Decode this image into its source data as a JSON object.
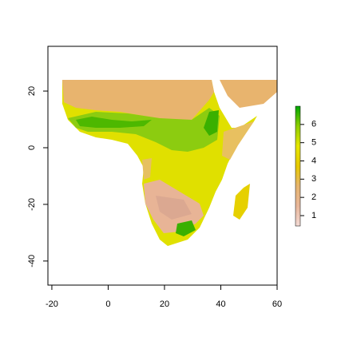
{
  "chart_data": {
    "type": "raster",
    "xlim": [
      -21.4,
      60
    ],
    "ylim": [
      -48.5,
      35.8
    ],
    "xticks": [
      -20,
      0,
      20,
      40,
      60
    ],
    "yticks": [
      -40,
      -20,
      0,
      20
    ],
    "zlim": [
      0.43,
      7.0
    ],
    "zticks": [
      1,
      2,
      3,
      4,
      5,
      6
    ],
    "legend_colors": [
      "#f2d9d4",
      "#e8b69a",
      "#e6b46e",
      "#e6c800",
      "#e6e600",
      "#8fce00",
      "#00a600"
    ]
  }
}
